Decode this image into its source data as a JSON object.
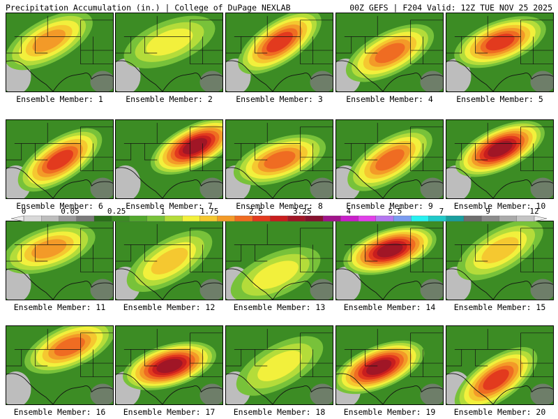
{
  "header": {
    "left": "Precipitation Accumulation (in.) | College of DuPage NEXLAB",
    "right": "00Z GEFS | F204 Valid: 12Z TUE NOV 25 2025"
  },
  "caption_prefix": "Ensemble Member: ",
  "members": [
    {
      "id": 1,
      "label": "Ensemble Member: 1",
      "maxlevel": 11,
      "peak": "northwest"
    },
    {
      "id": 2,
      "label": "Ensemble Member: 2",
      "maxlevel": 9,
      "peak": "north-central"
    },
    {
      "id": 3,
      "label": "Ensemble Member: 3",
      "maxlevel": 13,
      "peak": "north-central"
    },
    {
      "id": 4,
      "label": "Ensemble Member: 4",
      "maxlevel": 12,
      "peak": "central"
    },
    {
      "id": 5,
      "label": "Ensemble Member: 5",
      "maxlevel": 13,
      "peak": "north-central"
    },
    {
      "id": 6,
      "label": "Ensemble Member: 6",
      "maxlevel": 13,
      "peak": "central"
    },
    {
      "id": 7,
      "label": "Ensemble Member: 7",
      "maxlevel": 15,
      "peak": "northeast"
    },
    {
      "id": 8,
      "label": "Ensemble Member: 8",
      "maxlevel": 12,
      "peak": "central"
    },
    {
      "id": 9,
      "label": "Ensemble Member: 9",
      "maxlevel": 12,
      "peak": "central"
    },
    {
      "id": 10,
      "label": "Ensemble Member: 10",
      "maxlevel": 15,
      "peak": "north-central"
    },
    {
      "id": 11,
      "label": "Ensemble Member: 11",
      "maxlevel": 11,
      "peak": "northwest"
    },
    {
      "id": 12,
      "label": "Ensemble Member: 12",
      "maxlevel": 10,
      "peak": "central"
    },
    {
      "id": 13,
      "label": "Ensemble Member: 13",
      "maxlevel": 9,
      "peak": "south"
    },
    {
      "id": 14,
      "label": "Ensemble Member: 14",
      "maxlevel": 15,
      "peak": "north-central"
    },
    {
      "id": 15,
      "label": "Ensemble Member: 15",
      "maxlevel": 10,
      "peak": "north-central"
    },
    {
      "id": 16,
      "label": "Ensemble Member: 16",
      "maxlevel": 12,
      "peak": "north"
    },
    {
      "id": 17,
      "label": "Ensemble Member: 17",
      "maxlevel": 15,
      "peak": "central"
    },
    {
      "id": 18,
      "label": "Ensemble Member: 18",
      "maxlevel": 9,
      "peak": "central"
    },
    {
      "id": 19,
      "label": "Ensemble Member: 19",
      "maxlevel": 15,
      "peak": "west-central"
    },
    {
      "id": 20,
      "label": "Ensemble Member: 20",
      "maxlevel": 13,
      "peak": "south"
    }
  ],
  "colorbar": {
    "tick_labels": [
      "0",
      "0.05",
      "0.25",
      "1",
      "1.75",
      "2.5",
      "3.25",
      "4",
      "5.5",
      "7",
      "9",
      "12"
    ],
    "colors": [
      "#d9d9d9",
      "#bdbdbd",
      "#9a9a9a",
      "#7a7a7a",
      "#2a6e1a",
      "#3c8c24",
      "#52a82e",
      "#78c23a",
      "#b4dc3a",
      "#f2f03c",
      "#f5c830",
      "#f39a28",
      "#ef6c22",
      "#e23a1e",
      "#c81e1e",
      "#a01626",
      "#86122e",
      "#a0148a",
      "#c820c8",
      "#e040e8",
      "#b478f0",
      "#7a9cf0",
      "#28f0f0",
      "#20c8c8",
      "#1a9e9e",
      "#6e6e6e",
      "#8c8c8c",
      "#aaaaaa",
      "#c4c4c4"
    ]
  }
}
